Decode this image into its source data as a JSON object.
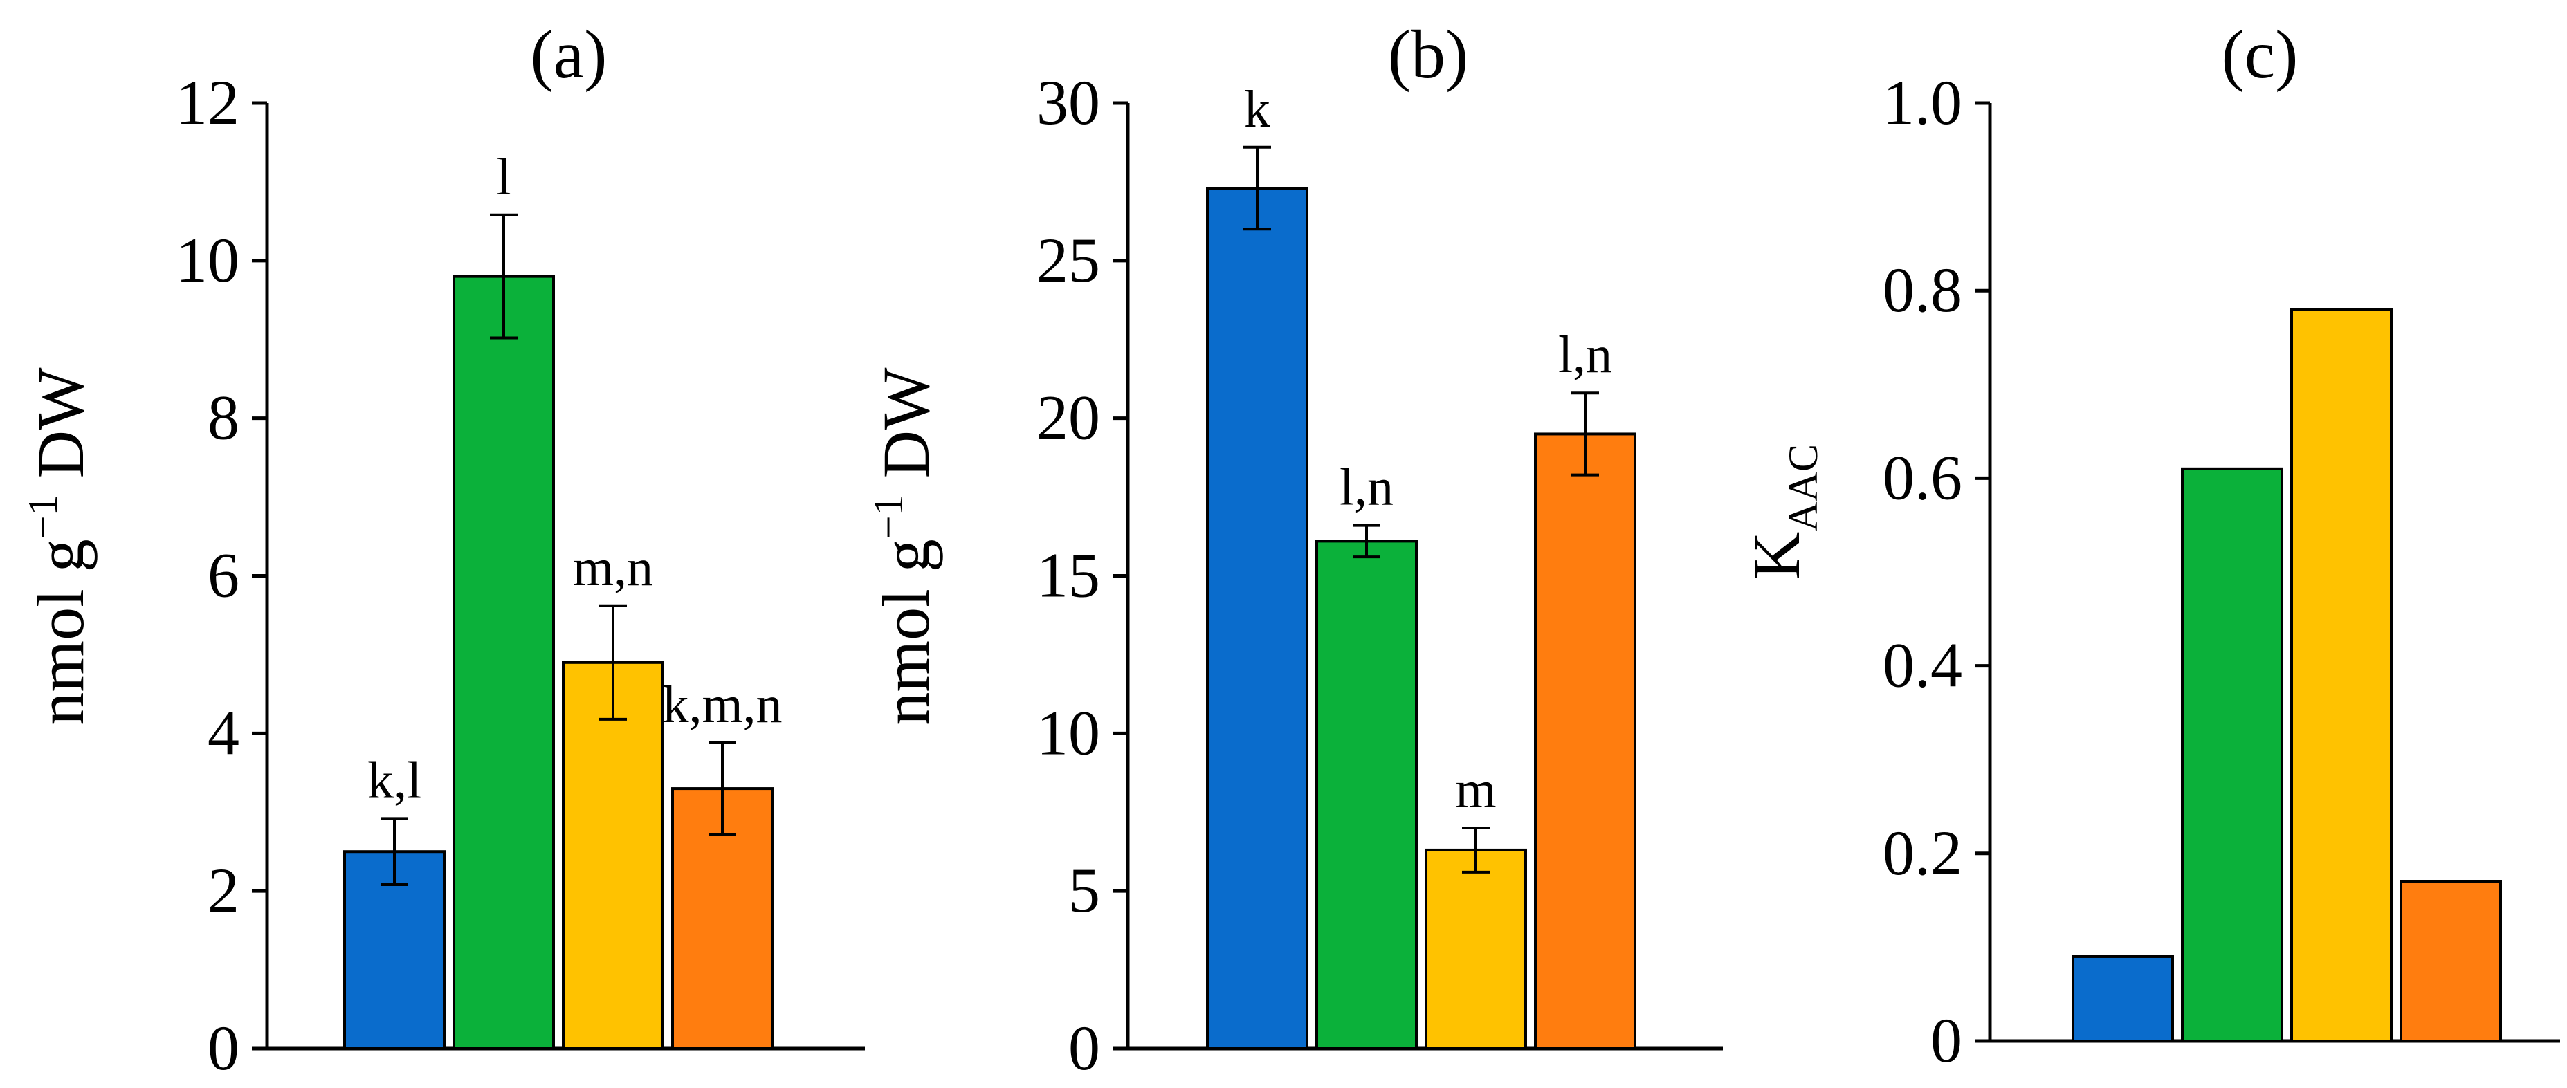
{
  "colors": {
    "series": [
      "#0a6ccc",
      "#0bb13a",
      "#ffc200",
      "#ff7d0f"
    ],
    "axis": "#000000"
  },
  "chart_data": [
    {
      "id": "a",
      "type": "bar",
      "title": "(a)",
      "ylabel": "nmol g",
      "ylabel_sup": "−1",
      "ylabel_tail": " DW",
      "ylim": [
        0,
        12
      ],
      "yticks": [
        0,
        2,
        4,
        6,
        8,
        10,
        12
      ],
      "ytick_labels": [
        "0",
        "2",
        "4",
        "6",
        "8",
        "10",
        "12"
      ],
      "values": [
        2.5,
        9.8,
        4.9,
        3.3
      ],
      "errors": [
        0.42,
        0.78,
        0.72,
        0.58
      ],
      "letters": [
        "k,l",
        "l",
        "m,n",
        "k,m,n"
      ]
    },
    {
      "id": "b",
      "type": "bar",
      "title": "(b)",
      "ylabel": "nmol g",
      "ylabel_sup": "−1",
      "ylabel_tail": " DW",
      "ylim": [
        0,
        30
      ],
      "yticks": [
        0,
        5,
        10,
        15,
        20,
        25,
        30
      ],
      "ytick_labels": [
        "0",
        "5",
        "10",
        "15",
        "20",
        "25",
        "30"
      ],
      "values": [
        27.3,
        16.1,
        6.3,
        19.5
      ],
      "errors": [
        1.3,
        0.5,
        0.7,
        1.3
      ],
      "letters": [
        "k",
        "l,n",
        "m",
        "l,n"
      ]
    },
    {
      "id": "c",
      "type": "bar",
      "title": "(c)",
      "ylabel": "K",
      "ylabel_sub": "AAC",
      "ylim": [
        0,
        1.0
      ],
      "yticks": [
        0,
        0.2,
        0.4,
        0.6,
        0.8,
        1.0
      ],
      "ytick_labels": [
        "0",
        "0.2",
        "0.4",
        "0.6",
        "0.8",
        "1.0"
      ],
      "values": [
        0.09,
        0.61,
        0.78,
        0.17
      ],
      "errors": null,
      "letters": null
    }
  ]
}
